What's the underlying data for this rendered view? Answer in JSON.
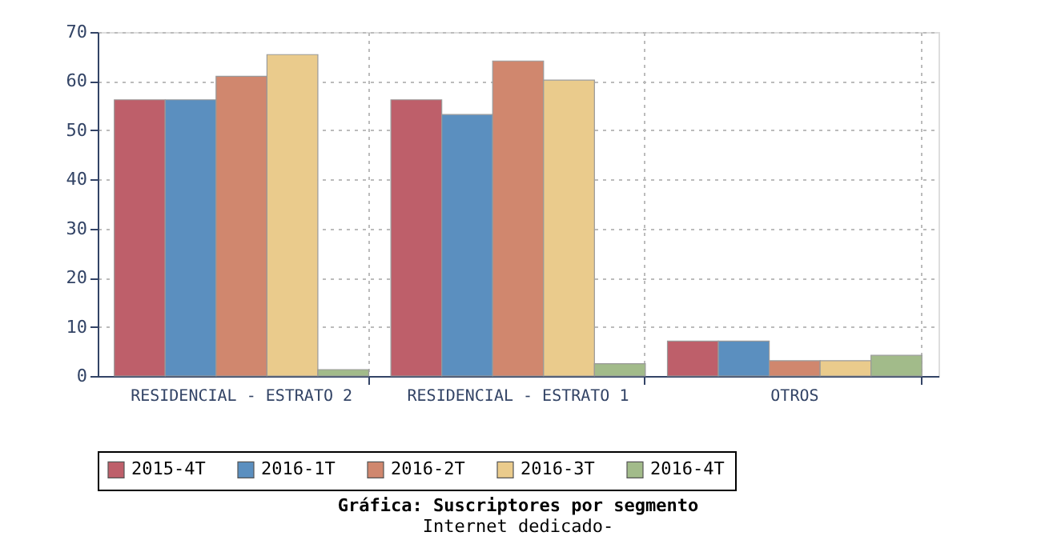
{
  "chart_data": {
    "type": "bar",
    "title": "Gráfica: Suscriptores por segmento",
    "subtitle": "Internet dedicado-",
    "categories": [
      "RESIDENCIAL - ESTRATO 2",
      "RESIDENCIAL - ESTRATO 1",
      "OTROS"
    ],
    "series": [
      {
        "name": "2015-4T",
        "color": "#be5f6a",
        "values": [
          56.2,
          56.2,
          7.1
        ]
      },
      {
        "name": "2016-1T",
        "color": "#5b8fbf",
        "values": [
          56.2,
          53.2,
          7.1
        ]
      },
      {
        "name": "2016-2T",
        "color": "#d0876e",
        "values": [
          61,
          64.1,
          3.1
        ]
      },
      {
        "name": "2016-3T",
        "color": "#eacb8c",
        "values": [
          65.4,
          60.2,
          3.1
        ]
      },
      {
        "name": "2016-4T",
        "color": "#a2bb8a",
        "values": [
          1.3,
          2.5,
          4.2
        ]
      }
    ],
    "ylim": [
      0,
      70
    ],
    "yticks": [
      0,
      10,
      20,
      30,
      40,
      50,
      60,
      70
    ],
    "grid": true,
    "legend": "bottom"
  }
}
